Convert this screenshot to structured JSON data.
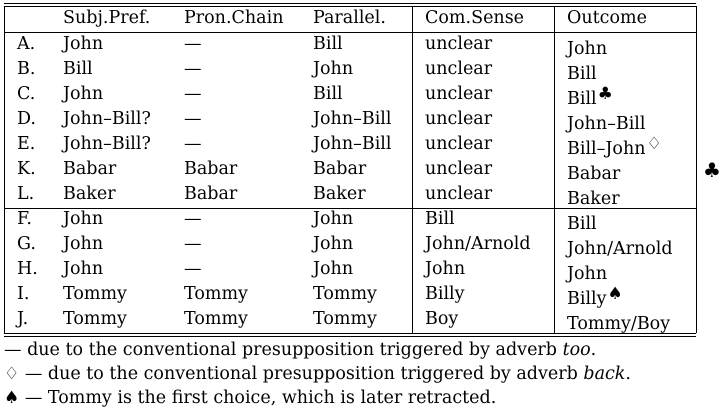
{
  "table": {
    "columns": [
      "",
      "Subj.Pref.",
      "Pron.Chain",
      "Parallel.",
      "Com.Sense",
      "Outcome"
    ],
    "group1": [
      {
        "label": "A.",
        "subj": "John",
        "pron": "—",
        "para": "Bill",
        "com": "unclear",
        "outcome": "John",
        "mark": ""
      },
      {
        "label": "B.",
        "subj": "Bill",
        "pron": "—",
        "para": "John",
        "com": "unclear",
        "outcome": "Bill",
        "mark": ""
      },
      {
        "label": "C.",
        "subj": "John",
        "pron": "—",
        "para": "Bill",
        "com": "unclear",
        "outcome": "Bill",
        "mark": "♣"
      },
      {
        "label": "D.",
        "subj": "John–Bill?",
        "pron": "—",
        "para": "John–Bill",
        "com": "unclear",
        "outcome": "John–Bill",
        "mark": ""
      },
      {
        "label": "E.",
        "subj": "John–Bill?",
        "pron": "—",
        "para": "John–Bill",
        "com": "unclear",
        "outcome": "Bill–John",
        "mark": "♢"
      },
      {
        "label": "K.",
        "subj": "Babar",
        "pron": "Babar",
        "para": "Babar",
        "com": "unclear",
        "outcome": "Babar",
        "mark": ""
      },
      {
        "label": "L.",
        "subj": "Baker",
        "pron": "Babar",
        "para": "Baker",
        "com": "unclear",
        "outcome": "Baker",
        "mark": ""
      }
    ],
    "group2": [
      {
        "label": "F.",
        "subj": "John",
        "pron": "—",
        "para": "John",
        "com": "Bill",
        "outcome": "Bill",
        "mark": ""
      },
      {
        "label": "G.",
        "subj": "John",
        "pron": "—",
        "para": "John",
        "com": "John/Arnold",
        "outcome": "John/Arnold",
        "mark": ""
      },
      {
        "label": "H.",
        "subj": "John",
        "pron": "—",
        "para": "John",
        "com": "John",
        "outcome": "John",
        "mark": ""
      },
      {
        "label": "I.",
        "subj": "Tommy",
        "pron": "Tommy",
        "para": "Tommy",
        "com": "Billy",
        "outcome": "Billy",
        "mark": "♠"
      },
      {
        "label": "J.",
        "subj": "Tommy",
        "pron": "Tommy",
        "para": "Tommy",
        "com": "Boy",
        "outcome": "Tommy/Boy",
        "mark": ""
      }
    ]
  },
  "outside_mark": "♣",
  "footnotes": [
    {
      "symbol": "",
      "text_before": "— due to the conventional presupposition triggered by adverb ",
      "emph": "too",
      "text_after": "."
    },
    {
      "symbol": "♢",
      "text_before": " — due to the conventional presupposition triggered by adverb ",
      "emph": "back",
      "text_after": "."
    },
    {
      "symbol": "♠",
      "text_before": " — Tommy is the first choice, which is later retracted.",
      "emph": "",
      "text_after": ""
    }
  ]
}
